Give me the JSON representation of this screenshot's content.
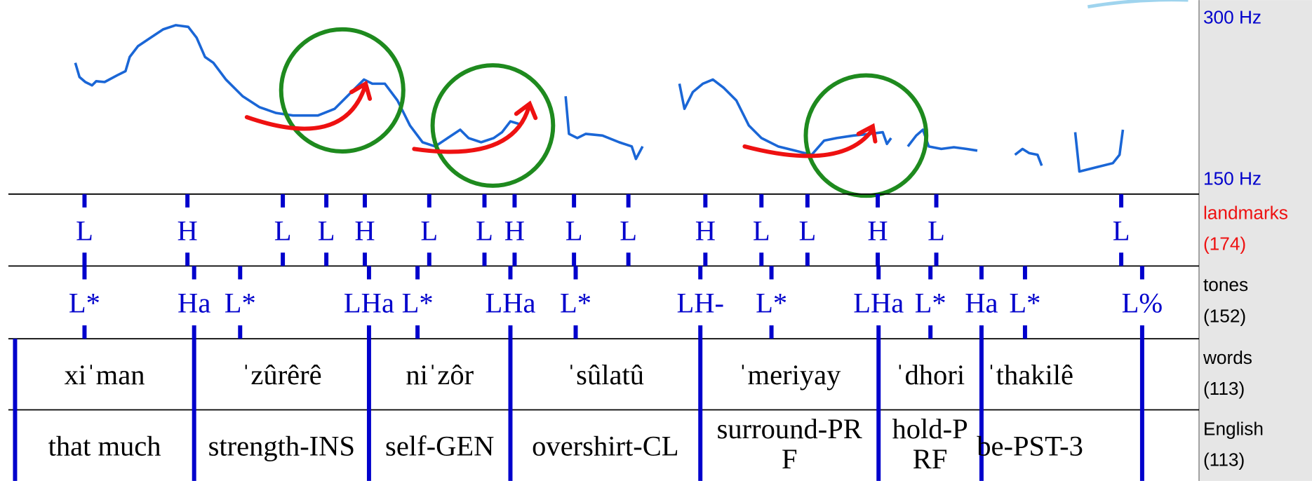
{
  "pitch": {
    "top": "300 Hz",
    "bottom": "150 Hz"
  },
  "tiers": [
    {
      "name": "landmarks",
      "count": "(174)",
      "points": [
        "L",
        "H",
        "L",
        "L",
        "H",
        "L",
        "L",
        "H",
        "L",
        "L",
        "H",
        "L",
        "L",
        "H",
        "L",
        "L"
      ]
    },
    {
      "name": "tones",
      "count": "(152)",
      "points": [
        "L*",
        "Ha",
        "L*",
        "LHa",
        "L*",
        "LHa",
        "L*",
        "LH-",
        "L*",
        "LHa",
        "L*",
        "Ha",
        "L*",
        "L%"
      ]
    },
    {
      "name": "words",
      "count": "(113)",
      "intervals": [
        [
          "xiˈman"
        ],
        [
          "ˈzûrêrê"
        ],
        [
          "niˈzôr"
        ],
        [
          "ˈsûlatû"
        ],
        [
          "ˈmeriyay"
        ],
        [
          "ˈdhori"
        ],
        [
          "ˈthakilê"
        ]
      ]
    },
    {
      "name": "English",
      "count": "(113)",
      "intervals": [
        [
          "that much"
        ],
        [
          "strength-INS"
        ],
        [
          "self-GEN"
        ],
        [
          "overshirt-CL"
        ],
        [
          "surround-PR",
          "F"
        ],
        [
          "hold-P",
          "RF"
        ],
        [
          "be-PST-3"
        ]
      ]
    }
  ]
}
